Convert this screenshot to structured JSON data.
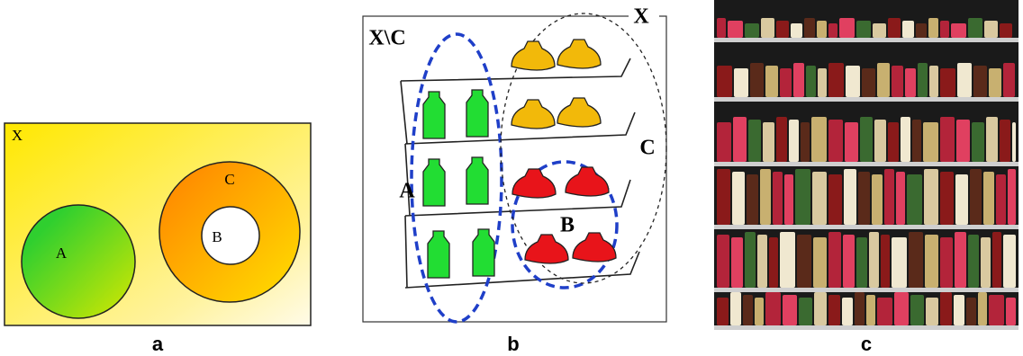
{
  "panels": [
    {
      "label": "a",
      "set_labels": [
        "X",
        "A",
        "C",
        "B"
      ]
    },
    {
      "label": "b",
      "set_labels": [
        "X\\C",
        "X",
        "A",
        "B",
        "C"
      ]
    },
    {
      "label": "c"
    }
  ]
}
